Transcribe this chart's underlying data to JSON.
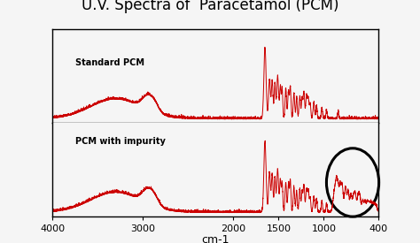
{
  "title": "U.V. Spectra of  Paracetamol (PCM)",
  "xlabel": "cm-1",
  "xlim": [
    4000,
    400
  ],
  "label_standard": "Standard PCM",
  "label_impurity": "PCM with impurity",
  "line_color": "#cc0000",
  "background_color": "#f5f5f5",
  "title_fontsize": 12,
  "xticks": [
    4000,
    3000,
    2000,
    1500,
    1000,
    400
  ],
  "xtick_labels": [
    "4000",
    "3000",
    "2000",
    "1500",
    "1000",
    "400"
  ]
}
